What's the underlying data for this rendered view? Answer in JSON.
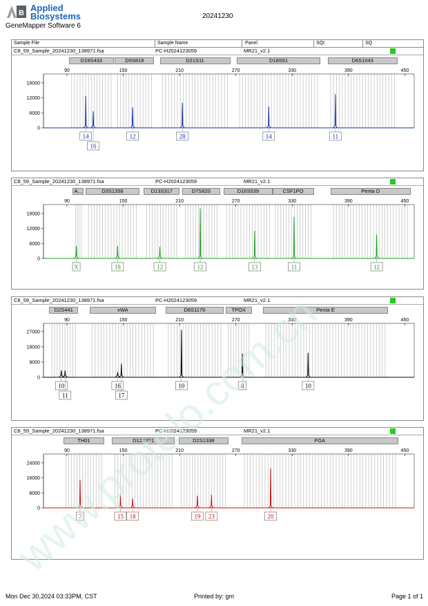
{
  "header": {
    "logo_line1": "Applied",
    "logo_line2": "Biosystems",
    "software": "GeneMapper Software 6",
    "date": "20241230"
  },
  "table_header": {
    "col1": "Sample File",
    "col2": "Sample Name",
    "col3": "Panel",
    "col4": "SQI",
    "col5": "SQ"
  },
  "sample": {
    "file": "C8_59_Sample_20241230_138971.fsa",
    "name": "PC-H2024123059",
    "panel": "MR21_v2.1"
  },
  "colors": {
    "blue": "#1030b0",
    "green": "#20a020",
    "black": "#000000",
    "red": "#cc1010",
    "sq": "#22cc22",
    "watermark": "#cfeedd"
  },
  "watermark": "www.protelo.com.cn",
  "chart_data": [
    {
      "type": "electropherogram",
      "color": "blue",
      "x_ticks": [
        90,
        150,
        210,
        270,
        330,
        390,
        450
      ],
      "y_ticks": [
        0,
        6000,
        12000,
        18000
      ],
      "ylim": [
        0,
        21000
      ],
      "xlim": [
        65,
        460
      ],
      "markers": [
        {
          "name": "D19S433",
          "start": 92,
          "end": 140
        },
        {
          "name": "D5S818",
          "start": 141,
          "end": 183
        },
        {
          "name": "D21S11",
          "start": 189,
          "end": 264
        },
        {
          "name": "D18S51",
          "start": 271,
          "end": 360
        },
        {
          "name": "D6S1043",
          "start": 368,
          "end": 442
        }
      ],
      "peaks": [
        {
          "x": 110,
          "y": 12800,
          "allele": "14",
          "row": 1
        },
        {
          "x": 118,
          "y": 6600,
          "allele": "16",
          "row": 2
        },
        {
          "x": 160,
          "y": 8200,
          "allele": "12",
          "row": 1
        },
        {
          "x": 213,
          "y": 10000,
          "allele": "28",
          "row": 1
        },
        {
          "x": 305,
          "y": 8500,
          "allele": "14",
          "row": 1
        },
        {
          "x": 376,
          "y": 13500,
          "allele": "11",
          "row": 1
        }
      ]
    },
    {
      "type": "electropherogram",
      "color": "green",
      "x_ticks": [
        90,
        150,
        210,
        270,
        330,
        390,
        450
      ],
      "y_ticks": [
        0,
        6000,
        12000,
        18000
      ],
      "ylim": [
        0,
        21000
      ],
      "xlim": [
        65,
        460
      ],
      "markers": [
        {
          "name": "A...",
          "start": 96,
          "end": 108
        },
        {
          "name": "D3S1358",
          "start": 110,
          "end": 167
        },
        {
          "name": "D13S317",
          "start": 172,
          "end": 210
        },
        {
          "name": "D7S820",
          "start": 213,
          "end": 253
        },
        {
          "name": "D16S539",
          "start": 257,
          "end": 309
        },
        {
          "name": "CSF1PO",
          "start": 309,
          "end": 353
        },
        {
          "name": "Penta D",
          "start": 371,
          "end": 456
        }
      ],
      "peaks": [
        {
          "x": 100,
          "y": 5000,
          "allele": "X",
          "row": 1
        },
        {
          "x": 144,
          "y": 5000,
          "allele": "18",
          "row": 1
        },
        {
          "x": 189,
          "y": 4700,
          "allele": "12",
          "row": 1
        },
        {
          "x": 232,
          "y": 20000,
          "allele": "12",
          "row": 1
        },
        {
          "x": 290,
          "y": 11000,
          "allele": "13",
          "row": 1
        },
        {
          "x": 332,
          "y": 16500,
          "allele": "11",
          "row": 1
        },
        {
          "x": 420,
          "y": 9500,
          "allele": "12",
          "row": 1
        }
      ]
    },
    {
      "type": "electropherogram",
      "color": "black",
      "x_ticks": [
        90,
        150,
        210,
        270,
        330,
        390,
        450
      ],
      "y_ticks": [
        0,
        9000,
        18000,
        27000
      ],
      "ylim": [
        0,
        31000
      ],
      "xlim": [
        65,
        460
      ],
      "markers": [
        {
          "name": "D2S441",
          "start": 71,
          "end": 102
        },
        {
          "name": "vWA",
          "start": 114,
          "end": 185
        },
        {
          "name": "D8S1179",
          "start": 195,
          "end": 257
        },
        {
          "name": "TPOX",
          "start": 259,
          "end": 287
        },
        {
          "name": "Penta E",
          "start": 299,
          "end": 432
        }
      ],
      "peaks": [
        {
          "x": 84,
          "y": 4000,
          "allele": "10",
          "row": 1
        },
        {
          "x": 88,
          "y": 4000,
          "allele": "11",
          "row": 2
        },
        {
          "x": 144,
          "y": 3000,
          "allele": "16",
          "row": 1
        },
        {
          "x": 148,
          "y": 8000,
          "allele": "17",
          "row": 2
        },
        {
          "x": 212,
          "y": 28000,
          "allele": "10",
          "row": 1
        },
        {
          "x": 277,
          "y": 14000,
          "allele": "8",
          "row": 1
        },
        {
          "x": 347,
          "y": 14500,
          "allele": "10",
          "row": 1
        }
      ]
    },
    {
      "type": "electropherogram",
      "color": "red",
      "x_ticks": [
        90,
        150,
        210,
        270,
        330,
        390,
        450
      ],
      "y_ticks": [
        0,
        8000,
        16000,
        24000
      ],
      "ylim": [
        0,
        28000
      ],
      "xlim": [
        65,
        460
      ],
      "markers": [
        {
          "name": "TH01",
          "start": 86,
          "end": 130
        },
        {
          "name": "D12S391",
          "start": 138,
          "end": 205
        },
        {
          "name": "D2S1338",
          "start": 209,
          "end": 262
        },
        {
          "name": "FGA",
          "start": 276,
          "end": 443
        }
      ],
      "peaks": [
        {
          "x": 104,
          "y": 15000,
          "allele": "7",
          "row": 1
        },
        {
          "x": 147,
          "y": 7000,
          "allele": "15",
          "row": 1
        },
        {
          "x": 160,
          "y": 5000,
          "allele": "18",
          "row": 1
        },
        {
          "x": 229,
          "y": 6500,
          "allele": "19",
          "row": 1
        },
        {
          "x": 244,
          "y": 7000,
          "allele": "23",
          "row": 1
        },
        {
          "x": 307,
          "y": 21000,
          "allele": "20",
          "row": 1
        }
      ]
    }
  ],
  "footer": {
    "left": "Mon Dec 30,2024 03:33PM, CST",
    "center": "Printed by: gm",
    "right": "Page 1 of 1"
  }
}
